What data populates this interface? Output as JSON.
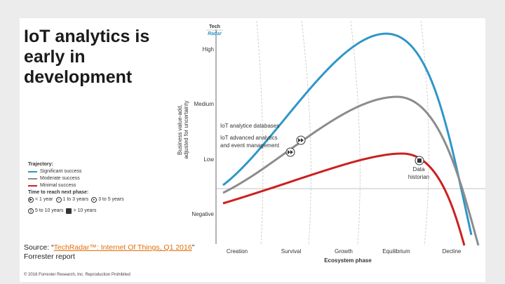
{
  "title": "IoT analytics is\nearly in\ndevelopment",
  "logo": {
    "line1": "Tech",
    "line2": "Radar"
  },
  "y_axis": {
    "title_line1": "Business value-add,",
    "title_line2": "adjusted for uncertainty",
    "ticks": [
      "High",
      "Medium",
      "Low",
      "Negative"
    ]
  },
  "x_axis": {
    "title": "Ecosystem phase",
    "phases": [
      "Creation",
      "Survival",
      "Growth",
      "Equilibrium",
      "Decline"
    ]
  },
  "annotations": {
    "databases": "IoT analytice databases",
    "advanced_line1": "IoT advanced analytics",
    "advanced_line2": "and event management",
    "historian_line1": "Data",
    "historian_line2": "historian"
  },
  "legend": {
    "trajectory_title": "Trajectory:",
    "trajectories": [
      {
        "label": "Significant success",
        "color": "#2f96c9"
      },
      {
        "label": "Moderate success",
        "color": "#8c8c8c"
      },
      {
        "label": "Minimal success",
        "color": "#cc1f1f"
      }
    ],
    "time_title": "Time to reach next phase:",
    "times": [
      "< 1 year",
      "1 to 3 years",
      "3 to 5 years",
      "5 to 10 years",
      "> 10 years"
    ]
  },
  "source": {
    "prefix": "Source: “",
    "link": "TechRadar™: Internet Of Things, Q1 2016",
    "suffix": "” Forrester report"
  },
  "copyright": "© 2016 Forrester Research, Inc. Reproduction Prohibited",
  "colors": {
    "blue": "#2f96c9",
    "gray": "#8c8c8c",
    "red": "#cc1f1f"
  }
}
